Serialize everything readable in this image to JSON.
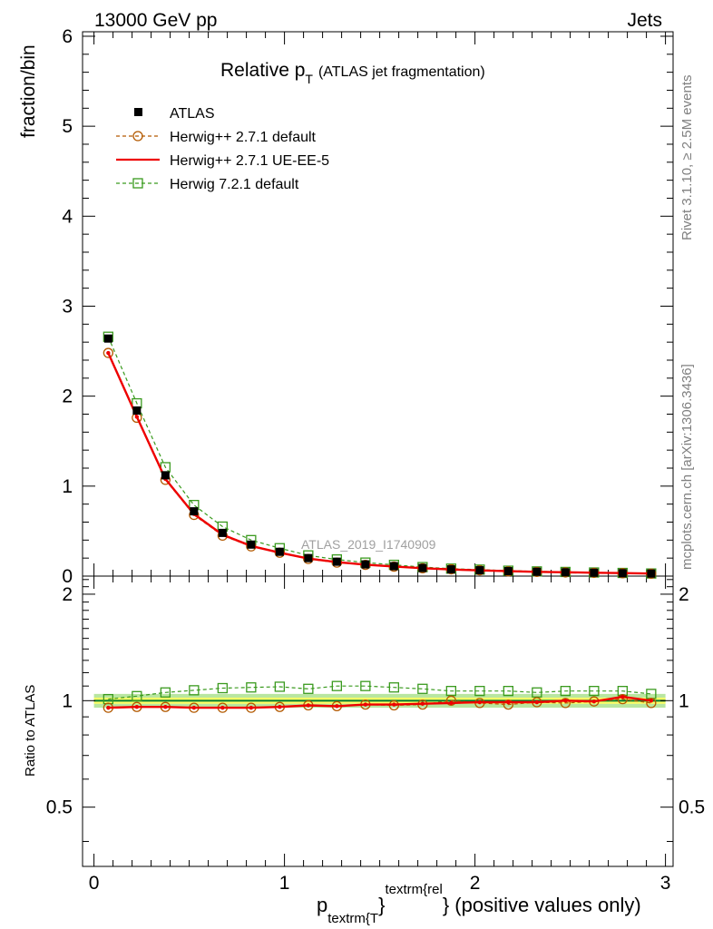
{
  "header": {
    "left": "13000 GeV pp",
    "right": "Jets"
  },
  "side_labels": {
    "top": "Rivet 3.1.10, ≥ 2.5M events",
    "bottom": "mcplots.cern.ch [arXiv:1306.3436]"
  },
  "chart_data": {
    "type": "line",
    "title_main": "Relative p",
    "title_sub": "T",
    "title_note": "(ATLAS jet fragmentation)",
    "watermark": "ATLAS_2019_I1740909",
    "ylabel": "fraction/bin",
    "ratio_ylabel": "Ratio to ATLAS",
    "xlabel_p": "p",
    "xlabel_sub": "textrm{T",
    "xlabel_sup": "textrm{rel",
    "xlabel_rest": "} (positive values only)",
    "xlabel_brace": "}",
    "xlim": [
      -0.06,
      3.04
    ],
    "ylim": [
      0,
      6.05
    ],
    "ratio_ylim": [
      0.34,
      2.25
    ],
    "x_ticks": [
      0,
      1,
      2,
      3
    ],
    "x_tick_labels": [
      "0",
      "1",
      "2",
      "3"
    ],
    "y_ticks": [
      0,
      1,
      2,
      3,
      4,
      5,
      6
    ],
    "y_tick_labels": [
      "0",
      "1",
      "2",
      "3",
      "4",
      "5",
      "6"
    ],
    "ratio_y_ticks": [
      0.5,
      1,
      2
    ],
    "ratio_y_tick_labels": [
      "0.5",
      "1",
      "2"
    ],
    "x": [
      0.075,
      0.225,
      0.375,
      0.525,
      0.675,
      0.825,
      0.975,
      1.125,
      1.275,
      1.425,
      1.575,
      1.725,
      1.875,
      2.025,
      2.175,
      2.325,
      2.475,
      2.625,
      2.775,
      2.925
    ],
    "legend": [
      "ATLAS",
      "Herwig++ 2.7.1 default",
      "Herwig++ 2.7.1 UE-EE-5",
      "Herwig 7.2.1 default"
    ],
    "series": [
      {
        "name": "ATLAS",
        "style": "data",
        "color": "#000000",
        "values": [
          2.64,
          1.84,
          1.12,
          0.72,
          0.48,
          0.35,
          0.27,
          0.2,
          0.16,
          0.13,
          0.11,
          0.09,
          0.075,
          0.065,
          0.055,
          0.048,
          0.042,
          0.037,
          0.032,
          0.028
        ],
        "ratio": [
          1,
          1,
          1,
          1,
          1,
          1,
          1,
          1,
          1,
          1,
          1,
          1,
          1,
          1,
          1,
          1,
          1,
          1,
          1,
          1
        ]
      },
      {
        "name": "Herwig++ 2.7.1 default",
        "style": "circle-dashed",
        "color": "#b35900",
        "values": [
          2.48,
          1.76,
          1.07,
          0.68,
          0.45,
          0.33,
          0.26,
          0.19,
          0.15,
          0.125,
          0.105,
          0.087,
          0.075,
          0.064,
          0.053,
          0.047,
          0.041,
          0.036,
          0.032,
          0.027
        ],
        "ratio": [
          0.955,
          0.96,
          0.96,
          0.955,
          0.955,
          0.955,
          0.96,
          0.97,
          0.965,
          0.975,
          0.97,
          0.975,
          1.0,
          0.985,
          0.975,
          0.99,
          0.985,
          0.995,
          1.01,
          0.985
        ]
      },
      {
        "name": "Herwig++ 2.7.1 UE-EE-5",
        "style": "solid",
        "color": "#ee0000",
        "values": [
          2.48,
          1.77,
          1.08,
          0.69,
          0.46,
          0.335,
          0.26,
          0.195,
          0.155,
          0.127,
          0.107,
          0.088,
          0.074,
          0.064,
          0.054,
          0.047,
          0.042,
          0.037,
          0.033,
          0.028
        ],
        "ratio": [
          0.955,
          0.96,
          0.96,
          0.955,
          0.955,
          0.955,
          0.96,
          0.97,
          0.965,
          0.975,
          0.975,
          0.98,
          0.985,
          0.99,
          0.99,
          0.99,
          1.0,
          0.995,
          1.025,
          1.0
        ]
      },
      {
        "name": "Herwig 7.2.1 default",
        "style": "square-dashed",
        "color": "#3a9a1e",
        "values": [
          2.66,
          1.92,
          1.21,
          0.79,
          0.55,
          0.4,
          0.31,
          0.23,
          0.185,
          0.15,
          0.125,
          0.1,
          0.083,
          0.072,
          0.06,
          0.052,
          0.046,
          0.04,
          0.035,
          0.029
        ],
        "ratio": [
          1.01,
          1.03,
          1.055,
          1.07,
          1.085,
          1.09,
          1.095,
          1.08,
          1.1,
          1.1,
          1.09,
          1.08,
          1.065,
          1.065,
          1.065,
          1.055,
          1.065,
          1.065,
          1.065,
          1.045
        ]
      }
    ],
    "colors": {
      "band_inner": "#ffff66",
      "band_outer": "#b8e6a0",
      "unity_line": "#007a33"
    }
  }
}
